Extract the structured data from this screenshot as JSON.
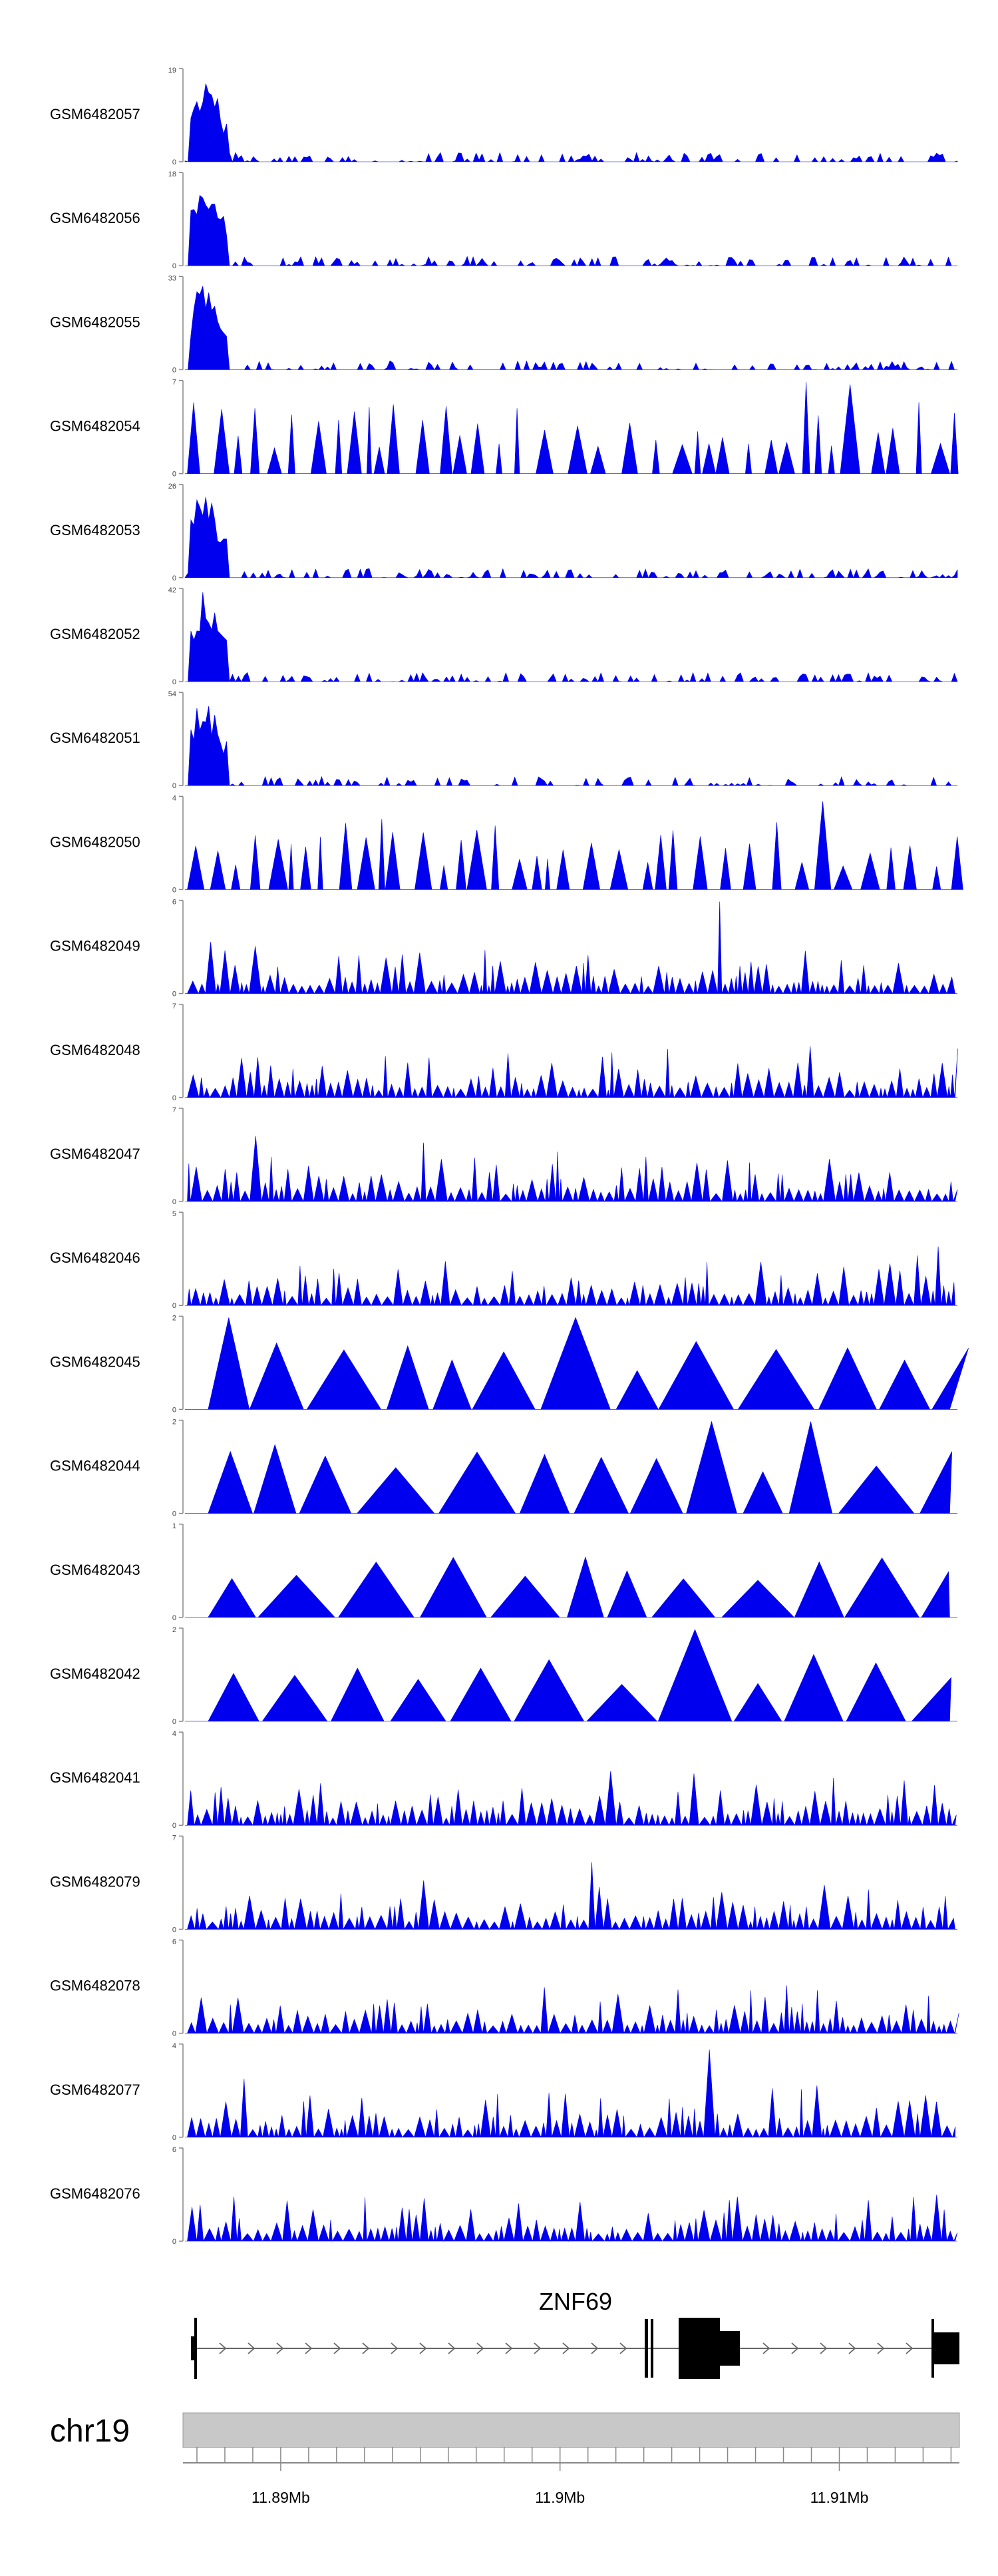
{
  "chart_data": {
    "type": "area",
    "fill_color": "#0000ee",
    "grid": false,
    "tracks": [
      {
        "name": "GSM6482057",
        "ymax": 19,
        "pattern": "early"
      },
      {
        "name": "GSM6482056",
        "ymax": 18,
        "pattern": "early"
      },
      {
        "name": "GSM6482055",
        "ymax": 33,
        "pattern": "early"
      },
      {
        "name": "GSM6482054",
        "ymax": 7,
        "pattern": "sparse"
      },
      {
        "name": "GSM6482053",
        "ymax": 26,
        "pattern": "early"
      },
      {
        "name": "GSM6482052",
        "ymax": 42,
        "pattern": "early"
      },
      {
        "name": "GSM6482051",
        "ymax": 54,
        "pattern": "early"
      },
      {
        "name": "GSM6482050",
        "ymax": 4,
        "pattern": "sparse"
      },
      {
        "name": "GSM6482049",
        "ymax": 6,
        "pattern": "dense"
      },
      {
        "name": "GSM6482048",
        "ymax": 7,
        "pattern": "dense"
      },
      {
        "name": "GSM6482047",
        "ymax": 7,
        "pattern": "dense"
      },
      {
        "name": "GSM6482046",
        "ymax": 5,
        "pattern": "dense"
      },
      {
        "name": "GSM6482045",
        "ymax": 2,
        "pattern": "triangles"
      },
      {
        "name": "GSM6482044",
        "ymax": 2,
        "pattern": "triangles"
      },
      {
        "name": "GSM6482043",
        "ymax": 1,
        "pattern": "triangles"
      },
      {
        "name": "GSM6482042",
        "ymax": 2,
        "pattern": "triangles"
      },
      {
        "name": "GSM6482041",
        "ymax": 4,
        "pattern": "dense"
      },
      {
        "name": "GSM6482079",
        "ymax": 7,
        "pattern": "dense"
      },
      {
        "name": "GSM6482078",
        "ymax": 6,
        "pattern": "dense"
      },
      {
        "name": "GSM6482077",
        "ymax": 4,
        "pattern": "dense"
      },
      {
        "name": "GSM6482076",
        "ymax": 6,
        "pattern": "dense"
      }
    ],
    "y_baseline_label": "0",
    "gene": {
      "name": "ZNF69",
      "strand": "+"
    },
    "chromosome": "chr19",
    "x_range_mb": [
      11.8865,
      11.9143
    ],
    "x_ticks": [
      {
        "value": 11.89,
        "label": "11.89Mb"
      },
      {
        "value": 11.9,
        "label": "11.9Mb"
      },
      {
        "value": 11.91,
        "label": "11.91Mb"
      }
    ]
  }
}
